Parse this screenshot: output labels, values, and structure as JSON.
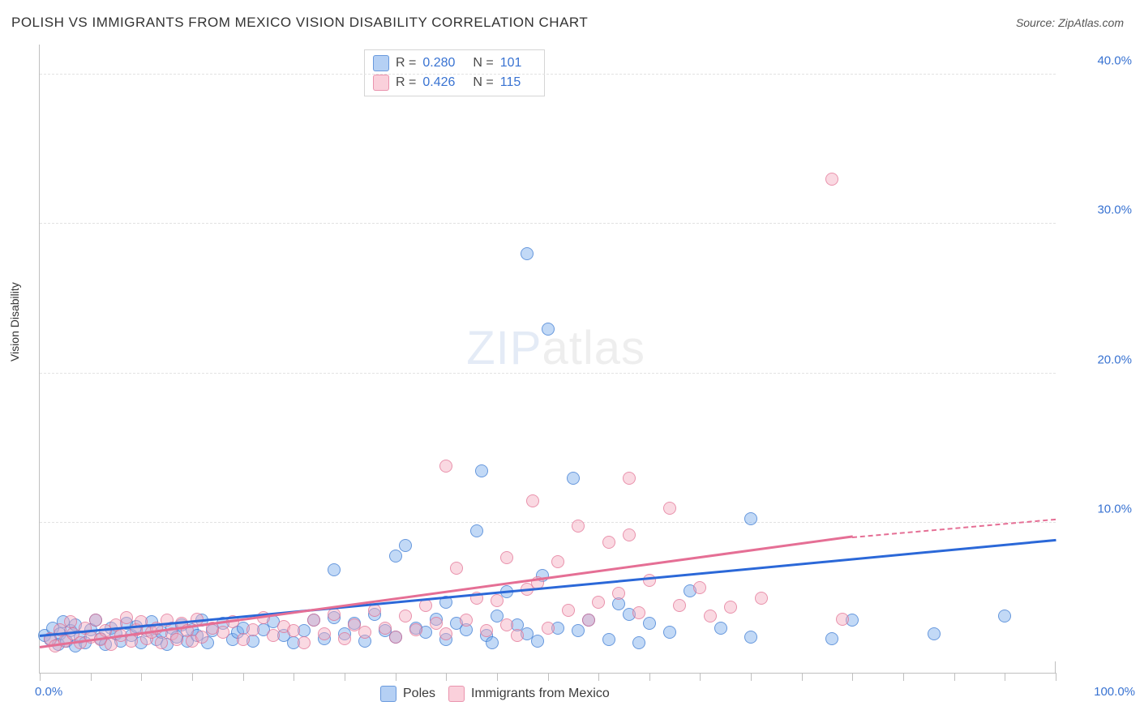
{
  "title": "POLISH VS IMMIGRANTS FROM MEXICO VISION DISABILITY CORRELATION CHART",
  "source": "Source: ZipAtlas.com",
  "ylabel": "Vision Disability",
  "watermark_a": "ZIP",
  "watermark_b": "atlas",
  "chart": {
    "type": "scatter",
    "xlim": [
      0,
      100
    ],
    "ylim": [
      0,
      42
    ],
    "x_tick_step": 5,
    "y_grid": [
      10,
      20,
      30,
      40
    ],
    "y_grid_labels": [
      "10.0%",
      "20.0%",
      "30.0%",
      "40.0%"
    ],
    "x_min_label": "0.0%",
    "x_max_label": "100.0%",
    "background_color": "#ffffff",
    "grid_color": "#e2e2e2",
    "axis_color": "#bfbfbf",
    "marker_radius": 8,
    "series": [
      {
        "key": "poles",
        "label": "Poles",
        "css_class": "series-blue",
        "point_color": "#78aaeb",
        "trend_color": "#2b68d8",
        "R": "0.280",
        "N": "101",
        "trend": {
          "x1": 0,
          "y1": 2.4,
          "x2": 100,
          "y2": 8.8
        },
        "points": [
          [
            0.5,
            2.5
          ],
          [
            1,
            2.2
          ],
          [
            1.3,
            3.0
          ],
          [
            1.8,
            1.9
          ],
          [
            2,
            2.6
          ],
          [
            2.3,
            3.4
          ],
          [
            2.6,
            2.1
          ],
          [
            3,
            2.8
          ],
          [
            3.5,
            3.2
          ],
          [
            3.5,
            1.8
          ],
          [
            4,
            2.4
          ],
          [
            4.5,
            2.0
          ],
          [
            5,
            2.9
          ],
          [
            5.5,
            3.5
          ],
          [
            6,
            2.3
          ],
          [
            6.5,
            1.9
          ],
          [
            7,
            3.0
          ],
          [
            7.5,
            2.6
          ],
          [
            8,
            2.1
          ],
          [
            8.5,
            3.3
          ],
          [
            9,
            2.5
          ],
          [
            9.5,
            3.1
          ],
          [
            10,
            2.0
          ],
          [
            10.5,
            2.8
          ],
          [
            11,
            3.4
          ],
          [
            11.5,
            2.2
          ],
          [
            12,
            2.7
          ],
          [
            12.5,
            1.9
          ],
          [
            13,
            3.0
          ],
          [
            13.5,
            2.4
          ],
          [
            14,
            3.2
          ],
          [
            14.5,
            2.1
          ],
          [
            15,
            2.9
          ],
          [
            15.5,
            2.5
          ],
          [
            16,
            3.5
          ],
          [
            16.5,
            2.0
          ],
          [
            17,
            2.8
          ],
          [
            18,
            3.3
          ],
          [
            19,
            2.2
          ],
          [
            19.5,
            2.7
          ],
          [
            20,
            3.0
          ],
          [
            21,
            2.1
          ],
          [
            22,
            2.9
          ],
          [
            23,
            3.4
          ],
          [
            24,
            2.5
          ],
          [
            25,
            2.0
          ],
          [
            26,
            2.8
          ],
          [
            27,
            3.5
          ],
          [
            28,
            2.3
          ],
          [
            29,
            3.7
          ],
          [
            29,
            6.9
          ],
          [
            30,
            2.6
          ],
          [
            31,
            3.3
          ],
          [
            32,
            2.1
          ],
          [
            33,
            3.9
          ],
          [
            34,
            2.8
          ],
          [
            35,
            7.8
          ],
          [
            35,
            2.4
          ],
          [
            36,
            8.5
          ],
          [
            37,
            3.0
          ],
          [
            38,
            2.7
          ],
          [
            39,
            3.6
          ],
          [
            40,
            4.7
          ],
          [
            40,
            2.2
          ],
          [
            41,
            3.3
          ],
          [
            42,
            2.9
          ],
          [
            43,
            9.5
          ],
          [
            43.5,
            13.5
          ],
          [
            44,
            2.5
          ],
          [
            44.5,
            2.0
          ],
          [
            45,
            3.8
          ],
          [
            46,
            5.4
          ],
          [
            47,
            3.2
          ],
          [
            48,
            2.6
          ],
          [
            48,
            28.0
          ],
          [
            49,
            2.1
          ],
          [
            49.5,
            6.5
          ],
          [
            50,
            23.0
          ],
          [
            51,
            3.0
          ],
          [
            52.5,
            13.0
          ],
          [
            53,
            2.8
          ],
          [
            54,
            3.5
          ],
          [
            56,
            2.2
          ],
          [
            57,
            4.6
          ],
          [
            58,
            3.9
          ],
          [
            59,
            2.0
          ],
          [
            60,
            3.3
          ],
          [
            62,
            2.7
          ],
          [
            64,
            5.5
          ],
          [
            67,
            3.0
          ],
          [
            70,
            2.4
          ],
          [
            70,
            10.3
          ],
          [
            78,
            2.3
          ],
          [
            80,
            3.5
          ],
          [
            88,
            2.6
          ],
          [
            95,
            3.8
          ]
        ]
      },
      {
        "key": "mexico",
        "label": "Immigrants from Mexico",
        "css_class": "series-pink",
        "point_color": "#f5aabe",
        "trend_color": "#e56f95",
        "R": "0.426",
        "N": "115",
        "trend": {
          "x1": 0,
          "y1": 1.6,
          "x2": 80,
          "y2": 9.0
        },
        "trend_dashed": {
          "x1": 80,
          "y1": 9.0,
          "x2": 100,
          "y2": 10.2
        },
        "points": [
          [
            1,
            2.3
          ],
          [
            1.5,
            1.8
          ],
          [
            2,
            2.9
          ],
          [
            2.5,
            2.1
          ],
          [
            3,
            3.4
          ],
          [
            3.3,
            2.6
          ],
          [
            4,
            2.0
          ],
          [
            4.5,
            3.0
          ],
          [
            5,
            2.4
          ],
          [
            5.5,
            3.5
          ],
          [
            6,
            2.2
          ],
          [
            6.5,
            2.8
          ],
          [
            7,
            1.9
          ],
          [
            7.5,
            3.2
          ],
          [
            8,
            2.5
          ],
          [
            8.5,
            3.7
          ],
          [
            9,
            2.1
          ],
          [
            9.5,
            2.9
          ],
          [
            10,
            3.4
          ],
          [
            10.5,
            2.3
          ],
          [
            11,
            2.7
          ],
          [
            11.5,
            3.0
          ],
          [
            12,
            2.0
          ],
          [
            12.5,
            3.5
          ],
          [
            13,
            2.6
          ],
          [
            13.5,
            2.2
          ],
          [
            14,
            3.3
          ],
          [
            14.5,
            2.8
          ],
          [
            15,
            2.1
          ],
          [
            15.5,
            3.6
          ],
          [
            16,
            2.4
          ],
          [
            17,
            3.0
          ],
          [
            18,
            2.7
          ],
          [
            19,
            3.4
          ],
          [
            20,
            2.2
          ],
          [
            21,
            2.9
          ],
          [
            22,
            3.7
          ],
          [
            23,
            2.5
          ],
          [
            24,
            3.1
          ],
          [
            25,
            2.8
          ],
          [
            26,
            2.0
          ],
          [
            27,
            3.5
          ],
          [
            28,
            2.6
          ],
          [
            29,
            3.9
          ],
          [
            30,
            2.3
          ],
          [
            31,
            3.2
          ],
          [
            32,
            2.7
          ],
          [
            33,
            4.2
          ],
          [
            34,
            3.0
          ],
          [
            35,
            2.4
          ],
          [
            36,
            3.8
          ],
          [
            37,
            2.9
          ],
          [
            38,
            4.5
          ],
          [
            39,
            3.3
          ],
          [
            40,
            13.8
          ],
          [
            40,
            2.6
          ],
          [
            41,
            7.0
          ],
          [
            42,
            3.5
          ],
          [
            43,
            5.0
          ],
          [
            44,
            2.8
          ],
          [
            45,
            4.8
          ],
          [
            46,
            3.2
          ],
          [
            46,
            7.7
          ],
          [
            47,
            2.5
          ],
          [
            48,
            5.6
          ],
          [
            48.5,
            11.5
          ],
          [
            49,
            6.0
          ],
          [
            50,
            3.0
          ],
          [
            51,
            7.4
          ],
          [
            52,
            4.2
          ],
          [
            53,
            9.8
          ],
          [
            54,
            3.5
          ],
          [
            55,
            4.7
          ],
          [
            56,
            8.7
          ],
          [
            57,
            5.3
          ],
          [
            58,
            9.2
          ],
          [
            58,
            13.0
          ],
          [
            59,
            4.0
          ],
          [
            60,
            6.2
          ],
          [
            62,
            11.0
          ],
          [
            63,
            4.5
          ],
          [
            65,
            5.7
          ],
          [
            66,
            3.8
          ],
          [
            68,
            4.4
          ],
          [
            71,
            5.0
          ],
          [
            78,
            33.0
          ],
          [
            79,
            3.6
          ]
        ]
      }
    ],
    "legend_top_prefix_r": "R =",
    "legend_top_prefix_n": "N ="
  }
}
